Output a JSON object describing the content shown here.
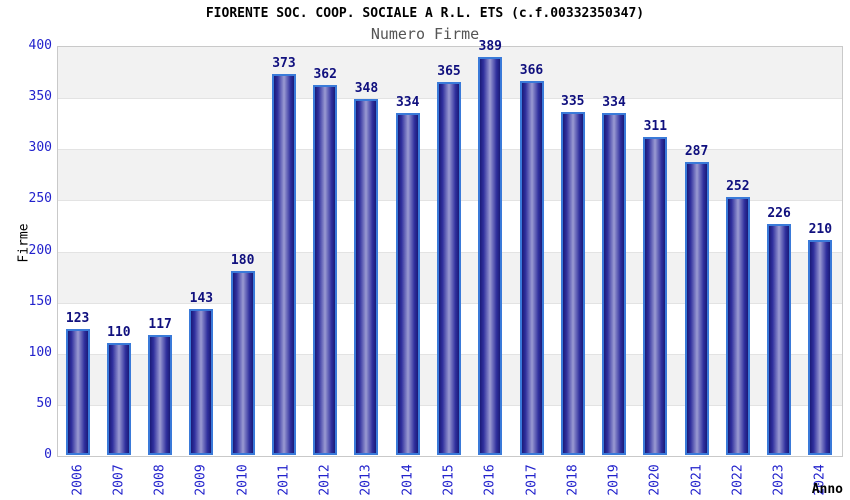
{
  "chart_data": {
    "type": "bar",
    "title": "FIORENTE SOC. COOP. SOCIALE A R.L. ETS (c.f.00332350347)",
    "subtitle": "Numero Firme",
    "xlabel": "Anno",
    "ylabel": "Firme",
    "categories": [
      "2006",
      "2007",
      "2008",
      "2009",
      "2010",
      "2011",
      "2012",
      "2013",
      "2014",
      "2015",
      "2016",
      "2017",
      "2018",
      "2019",
      "2020",
      "2021",
      "2022",
      "2023",
      "2024"
    ],
    "values": [
      123,
      110,
      117,
      143,
      180,
      373,
      362,
      348,
      334,
      365,
      389,
      366,
      335,
      334,
      311,
      287,
      252,
      226,
      210
    ],
    "ylim": [
      0,
      400
    ],
    "ytick_step": 50,
    "yticks": [
      "0",
      "50",
      "100",
      "150",
      "200",
      "250",
      "300",
      "350",
      "400"
    ],
    "grid": true,
    "legend": false,
    "plot_background": "alternating horizontal bands"
  },
  "colors": {
    "bar_border": "#3a7ad9",
    "bar_edge": "#1a1a78",
    "bar_inner": "#30309e",
    "bar_center": "#9a9ad2",
    "value_label": "#10107e",
    "tick_label": "#2222cc",
    "band_gray": "#f2f2f2",
    "gridline": "#e3e3e3",
    "plot_border": "#c9c9c9",
    "title": "#000000",
    "subtitle": "#555555"
  }
}
